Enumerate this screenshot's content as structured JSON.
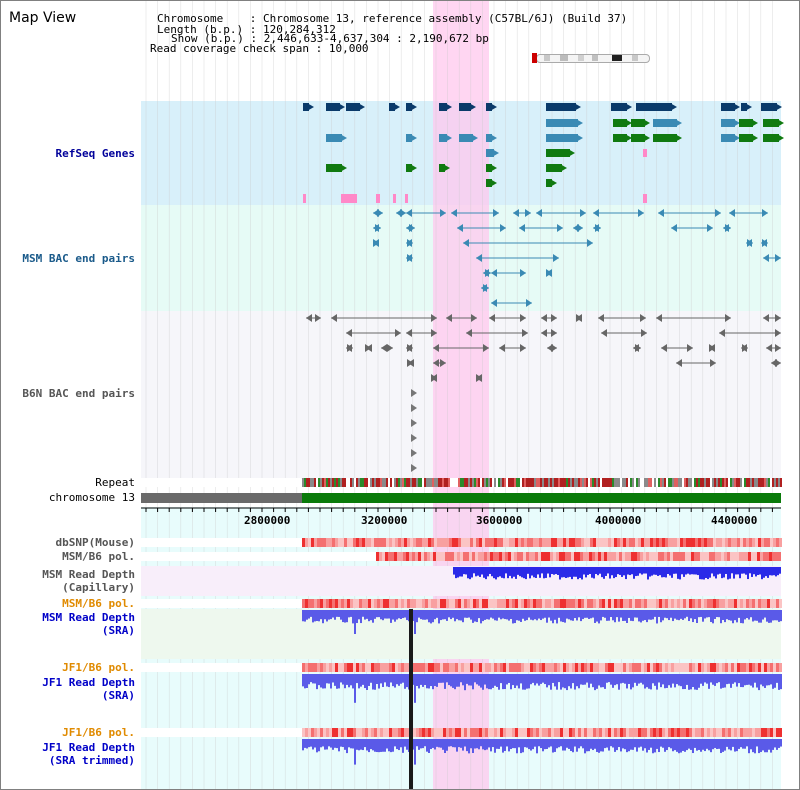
{
  "page": {
    "title": "Map View"
  },
  "header": {
    "chromosome_key": "Chromosome    ",
    "chromosome_value": ": Chromosome 13, reference assembly (C57BL/6J) (Build 37)",
    "length_key": "Length (b.p.) ",
    "length_value": ": 120,284,312",
    "show_key": "Show (b.p.) ",
    "show_value": ": 2,446,633-4,637,304 : 2,190,672 bp",
    "span_key": "Read coverage check span ",
    "span_value": ": 10,000"
  },
  "tracks": {
    "refseq": {
      "label": "RefSeq Genes",
      "color": "#00009a"
    },
    "msm_bac": {
      "label": "MSM BAC end pairs",
      "color": "#1a5a8a"
    },
    "b6n_bac": {
      "label": "B6N BAC end pairs",
      "color": "#555555"
    },
    "repeat": {
      "label": "Repeat"
    },
    "chrom": {
      "label": "chromosome 13"
    },
    "dbsnp": {
      "label": "dbSNP(Mouse)"
    },
    "msm_b6_pol_a": {
      "label": "MSM/B6 pol."
    },
    "msm_depth_cap": {
      "label1": "MSM Read Depth",
      "label2": "(Capillary)"
    },
    "msm_b6_pol_b": {
      "label": "MSM/B6 pol.",
      "color": "#e08a00"
    },
    "msm_depth_sra": {
      "label1": "MSM Read Depth",
      "label2": "(SRA)",
      "color": "#0000c8"
    },
    "jf1_pol_a": {
      "label": "JF1/B6 pol.",
      "color": "#e08a00"
    },
    "jf1_depth_sra": {
      "label1": "JF1 Read Depth",
      "label2": "(SRA)",
      "color": "#0000c8"
    },
    "jf1_pol_b": {
      "label": "JF1/B6 pol.",
      "color": "#e08a00"
    },
    "jf1_depth_trim": {
      "label1": "JF1 Read Depth",
      "label2": "(SRA trimmed)",
      "color": "#0000c8"
    }
  },
  "ruler": {
    "ticks": [
      "2800000",
      "3200000",
      "3600000",
      "4000000",
      "4400000"
    ]
  },
  "colors": {
    "refseq_bg": "#d8f0fa",
    "msm_bg": "#e6fbf6",
    "b6n_bg": "#f6f6fa",
    "highlight": "#ffc8ee",
    "gene_dark": "#0a3a6a",
    "gene_mid": "#3a8ab4",
    "gene_green": "#107a10",
    "chrom_gray": "#6a6a6a",
    "chrom_green": "#0a7a0a",
    "depth_blue": "#5a5ae8"
  }
}
